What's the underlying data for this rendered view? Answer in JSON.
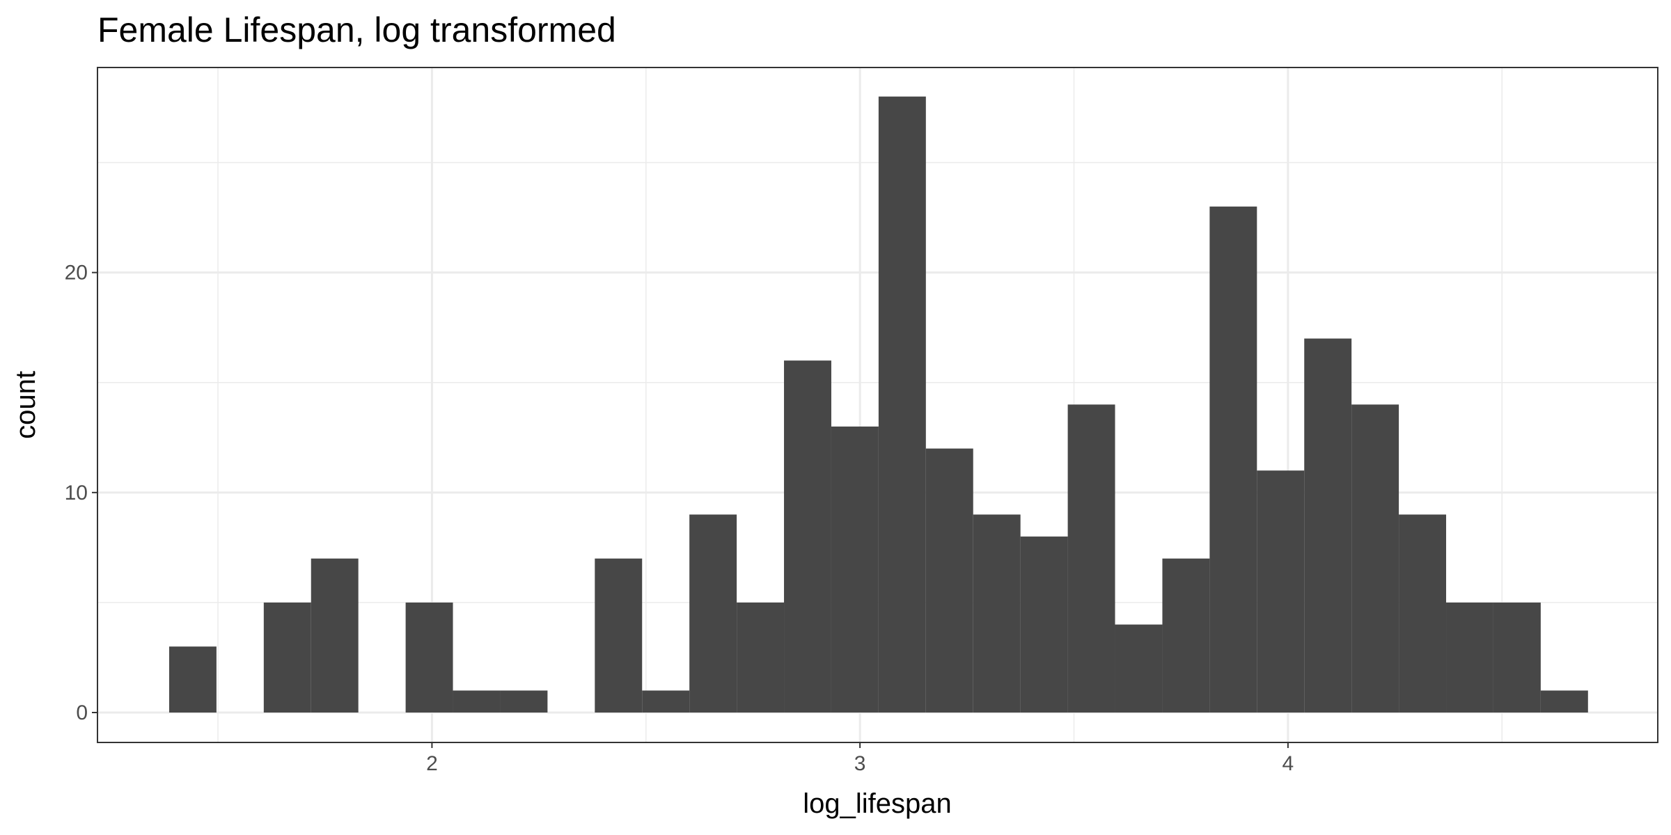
{
  "chart_data": {
    "type": "histogram",
    "title": "Female Lifespan, log transformed",
    "x_label": "log_lifespan",
    "y_label": "count",
    "color": "#474747",
    "bins": [
      1.386,
      1.4965,
      1.607,
      1.7175,
      1.828,
      1.9385,
      2.049,
      2.1595,
      2.27,
      2.3805,
      2.491,
      2.6015,
      2.712,
      2.8225,
      2.933,
      3.0435,
      3.154,
      3.2645,
      3.375,
      3.4855,
      3.596,
      3.7065,
      3.817,
      3.9275,
      4.038,
      4.1485,
      4.259,
      4.3695,
      4.48,
      4.5905,
      4.701
    ],
    "values": [
      3,
      0,
      5,
      7,
      0,
      5,
      1,
      1,
      0,
      7,
      1,
      9,
      5,
      16,
      13,
      28,
      12,
      9,
      8,
      14,
      4,
      7,
      23,
      11,
      17,
      14,
      9,
      5,
      5,
      1
    ],
    "xlim": [
      1.2185,
      4.864
    ],
    "ylim": [
      -1.36,
      29.32
    ],
    "xticks": [
      2,
      3,
      4
    ],
    "yticks": [
      0,
      10,
      20
    ],
    "xminor": [
      1.5,
      2.5,
      3.5,
      4.5
    ],
    "yminor": [
      5,
      15,
      25
    ],
    "grid": true
  }
}
